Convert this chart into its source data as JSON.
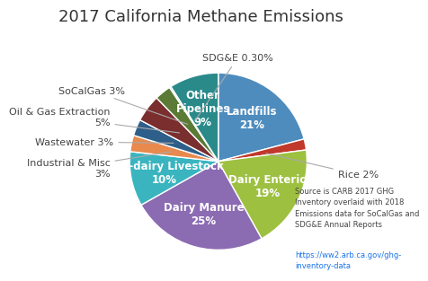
{
  "title": "2017 California Methane Emissions",
  "values": [
    21,
    2,
    19,
    25,
    10,
    3,
    3,
    5,
    3,
    0.3,
    9
  ],
  "colors": [
    "#4e8cbe",
    "#c0392b",
    "#9dc040",
    "#8b6bb1",
    "#3ab5c0",
    "#e8894e",
    "#2e5f8a",
    "#7a2e2e",
    "#5a7a35",
    "#c8c8c8",
    "#2a8a8a"
  ],
  "inside_labels": [
    "Landfills\n21%",
    "",
    "Dairy Enteric\n19%",
    "Dairy Manure\n25%",
    "Non-dairy Livestock\n10%",
    "",
    "",
    "",
    "",
    "",
    "Other\nPipelines\n9%"
  ],
  "external_annotations": [
    {
      "idx": 1,
      "label": "Rice 2%",
      "ha": "left"
    },
    {
      "idx": 9,
      "label": "SDG&E 0.30%",
      "ha": "center"
    },
    {
      "idx": 8,
      "label": "SoCalGas 3%",
      "ha": "right"
    },
    {
      "idx": 7,
      "label": "Oil & Gas Extraction\n5%",
      "ha": "right"
    },
    {
      "idx": 6,
      "label": "Wastewater 3%",
      "ha": "right"
    },
    {
      "idx": 5,
      "label": "Industrial & Misc\n3%",
      "ha": "right"
    }
  ],
  "source_text": "Source is CARB 2017 GHG\nInventory overlaid with 2018\nEmissions data for SoCalGas and\nSDG&E Annual Reports",
  "source_url": "https://ww2.arb.ca.gov/ghg-\ninventory-data",
  "background_color": "#ffffff",
  "title_fontsize": 13,
  "label_fontsize": 8.5,
  "ext_label_fontsize": 8
}
